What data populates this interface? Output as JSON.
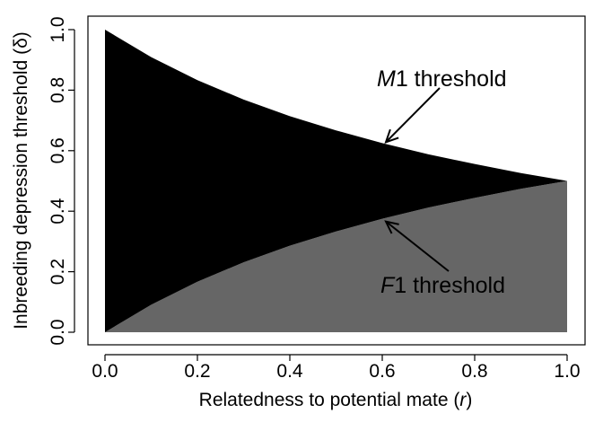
{
  "chart_data": {
    "type": "area",
    "xlabel": "Relatedness to potential mate (r)",
    "xlabel_parts": {
      "main": "Relatedness to potential mate (",
      "var": "r",
      "close": ")"
    },
    "ylabel": "Inbreeding depression threshold (δ)",
    "xlim": [
      0,
      1
    ],
    "ylim": [
      0,
      1
    ],
    "x_ticks": [
      "0.0",
      "0.2",
      "0.4",
      "0.6",
      "0.8",
      "1.0"
    ],
    "y_ticks": [
      "0.0",
      "0.2",
      "0.4",
      "0.6",
      "0.8",
      "1.0"
    ],
    "series": [
      {
        "name": "M1 threshold",
        "x": [
          0.0,
          0.1,
          0.2,
          0.3,
          0.4,
          0.5,
          0.6,
          0.7,
          0.8,
          0.9,
          1.0
        ],
        "y": [
          1.0,
          0.909,
          0.833,
          0.769,
          0.714,
          0.667,
          0.625,
          0.588,
          0.556,
          0.526,
          0.5
        ]
      },
      {
        "name": "F1 threshold",
        "x": [
          0.0,
          0.1,
          0.2,
          0.3,
          0.4,
          0.5,
          0.6,
          0.7,
          0.8,
          0.9,
          1.0
        ],
        "y": [
          0.0,
          0.091,
          0.167,
          0.231,
          0.286,
          0.333,
          0.375,
          0.412,
          0.444,
          0.474,
          0.5
        ]
      }
    ],
    "fill_between_color": "#000000",
    "fill_below_color": "#666666",
    "annotations": [
      {
        "italic": "M",
        "rest": "1 threshold",
        "points_to": {
          "x": 0.6,
          "y": 0.625
        }
      },
      {
        "italic": "F",
        "rest": "1 threshold",
        "points_to": {
          "x": 0.6,
          "y": 0.375
        }
      }
    ],
    "grid": false,
    "legend": "none"
  }
}
